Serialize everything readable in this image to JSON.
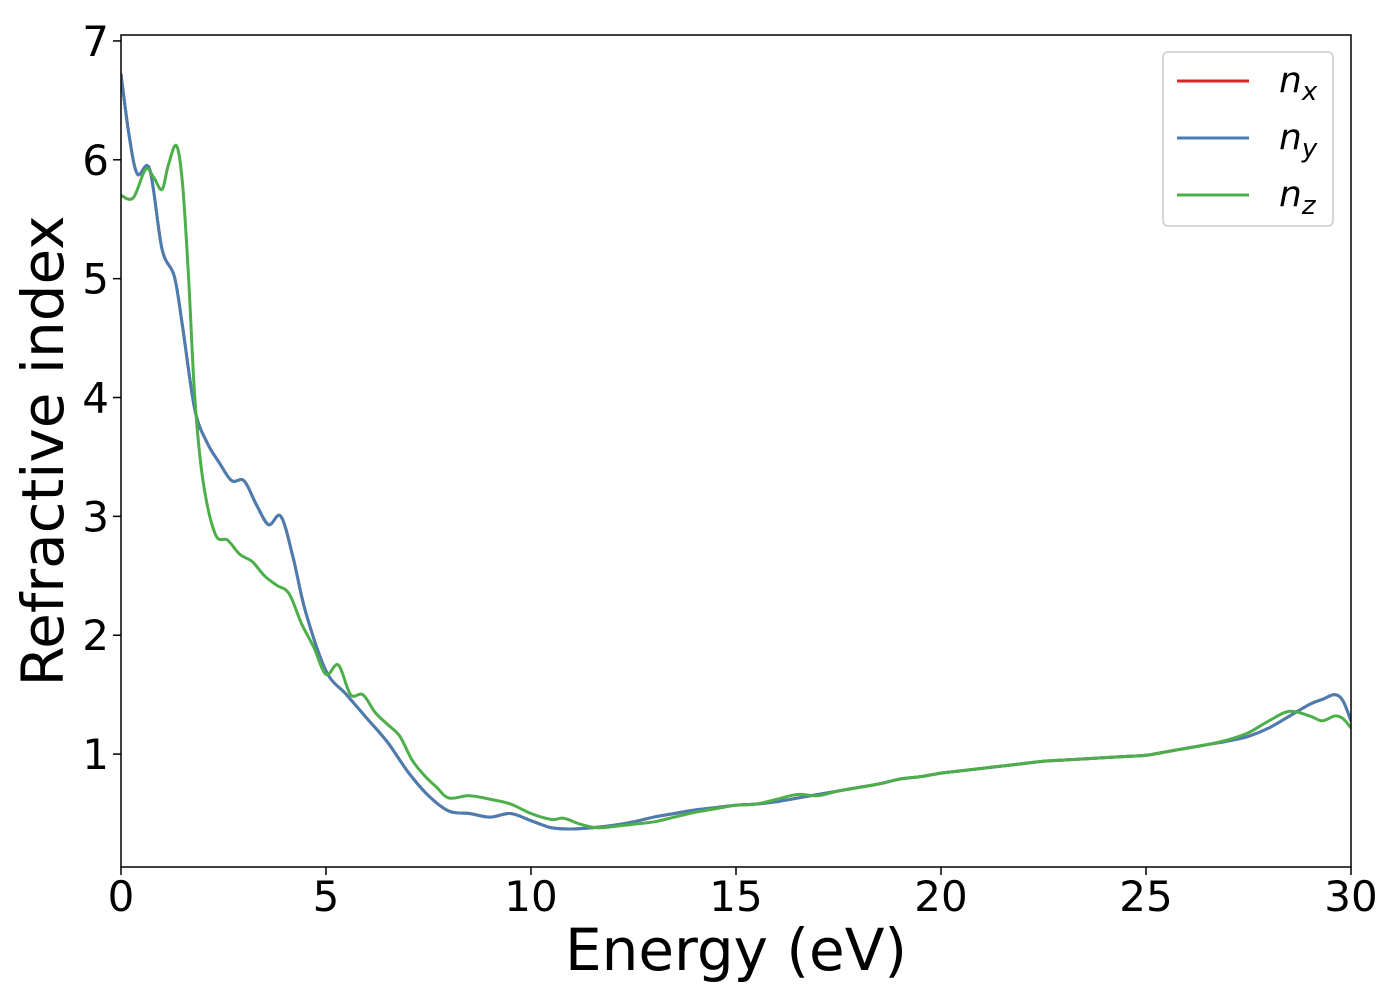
{
  "chart_data": {
    "type": "line",
    "xlabel": "Energy (eV)",
    "ylabel": "Refractive index",
    "xlim": [
      0,
      30
    ],
    "ylim": [
      0.05,
      7.05
    ],
    "xticks": [
      0,
      5,
      10,
      15,
      20,
      25,
      30
    ],
    "yticks": [
      1,
      2,
      3,
      4,
      5,
      6,
      7
    ],
    "grid": false,
    "legend_position": "top-right",
    "series": [
      {
        "name": "n",
        "subscript": "x",
        "color": "#d62728",
        "x": [
          0,
          0.2,
          0.4,
          0.7,
          1.0,
          1.3,
          1.5,
          1.8,
          2.1,
          2.4,
          2.7,
          3.0,
          3.3,
          3.6,
          3.9,
          4.2,
          4.5,
          5.0,
          5.5,
          6.0,
          6.5,
          7.0,
          7.5,
          8.0,
          8.5,
          9.0,
          9.5,
          10.0,
          10.5,
          11.0,
          11.5,
          12.0,
          12.5,
          13.0,
          13.5,
          14.0,
          14.5,
          15.0,
          15.5,
          16.0,
          16.5,
          17.0,
          17.5,
          18.0,
          18.5,
          19.0,
          19.5,
          20.0,
          20.5,
          21.0,
          21.5,
          22.0,
          22.5,
          23.0,
          23.5,
          24.0,
          24.5,
          25.0,
          25.5,
          26.0,
          26.5,
          27.0,
          27.5,
          28.0,
          28.5,
          29.0,
          29.3,
          29.6,
          29.8,
          30.0
        ],
        "y": [
          6.72,
          6.2,
          5.88,
          5.92,
          5.25,
          5.02,
          4.6,
          3.9,
          3.62,
          3.45,
          3.3,
          3.3,
          3.1,
          2.93,
          3.0,
          2.65,
          2.2,
          1.7,
          1.5,
          1.3,
          1.1,
          0.85,
          0.65,
          0.52,
          0.5,
          0.47,
          0.5,
          0.44,
          0.38,
          0.37,
          0.38,
          0.4,
          0.43,
          0.47,
          0.5,
          0.53,
          0.55,
          0.57,
          0.58,
          0.6,
          0.63,
          0.66,
          0.69,
          0.72,
          0.75,
          0.79,
          0.81,
          0.84,
          0.86,
          0.88,
          0.9,
          0.92,
          0.94,
          0.95,
          0.96,
          0.97,
          0.98,
          0.99,
          1.02,
          1.05,
          1.08,
          1.11,
          1.15,
          1.22,
          1.32,
          1.42,
          1.46,
          1.5,
          1.45,
          1.28
        ]
      },
      {
        "name": "n",
        "subscript": "y",
        "color": "#4a7eb0",
        "x": [
          0,
          0.2,
          0.4,
          0.7,
          1.0,
          1.3,
          1.5,
          1.8,
          2.1,
          2.4,
          2.7,
          3.0,
          3.3,
          3.6,
          3.9,
          4.2,
          4.5,
          5.0,
          5.5,
          6.0,
          6.5,
          7.0,
          7.5,
          8.0,
          8.5,
          9.0,
          9.5,
          10.0,
          10.5,
          11.0,
          11.5,
          12.0,
          12.5,
          13.0,
          13.5,
          14.0,
          14.5,
          15.0,
          15.5,
          16.0,
          16.5,
          17.0,
          17.5,
          18.0,
          18.5,
          19.0,
          19.5,
          20.0,
          20.5,
          21.0,
          21.5,
          22.0,
          22.5,
          23.0,
          23.5,
          24.0,
          24.5,
          25.0,
          25.5,
          26.0,
          26.5,
          27.0,
          27.5,
          28.0,
          28.5,
          29.0,
          29.3,
          29.6,
          29.8,
          30.0
        ],
        "y": [
          6.72,
          6.2,
          5.88,
          5.92,
          5.25,
          5.02,
          4.6,
          3.9,
          3.62,
          3.45,
          3.3,
          3.3,
          3.1,
          2.93,
          3.0,
          2.65,
          2.2,
          1.7,
          1.5,
          1.3,
          1.1,
          0.85,
          0.65,
          0.52,
          0.5,
          0.47,
          0.5,
          0.44,
          0.38,
          0.37,
          0.38,
          0.4,
          0.43,
          0.47,
          0.5,
          0.53,
          0.55,
          0.57,
          0.58,
          0.6,
          0.63,
          0.66,
          0.69,
          0.72,
          0.75,
          0.79,
          0.81,
          0.84,
          0.86,
          0.88,
          0.9,
          0.92,
          0.94,
          0.95,
          0.96,
          0.97,
          0.98,
          0.99,
          1.02,
          1.05,
          1.08,
          1.11,
          1.15,
          1.22,
          1.32,
          1.42,
          1.46,
          1.5,
          1.45,
          1.28
        ]
      },
      {
        "name": "n",
        "subscript": "z",
        "color": "#4daf4a",
        "x": [
          0,
          0.3,
          0.6,
          0.8,
          1.0,
          1.15,
          1.35,
          1.5,
          1.65,
          1.8,
          2.0,
          2.3,
          2.6,
          2.9,
          3.2,
          3.5,
          3.8,
          4.1,
          4.4,
          4.7,
          5.0,
          5.3,
          5.6,
          5.9,
          6.2,
          6.5,
          6.8,
          7.1,
          7.4,
          7.7,
          8.0,
          8.5,
          9.0,
          9.5,
          10.0,
          10.5,
          10.8,
          11.2,
          11.6,
          12.0,
          12.5,
          13.0,
          13.5,
          14.0,
          14.5,
          15.0,
          15.5,
          16.0,
          16.5,
          17.0,
          17.5,
          18.0,
          18.5,
          19.0,
          19.5,
          20.0,
          20.5,
          21.0,
          21.5,
          22.0,
          22.5,
          23.0,
          23.5,
          24.0,
          24.5,
          25.0,
          25.5,
          26.0,
          26.5,
          27.0,
          27.5,
          28.0,
          28.5,
          29.0,
          29.3,
          29.6,
          29.8,
          30.0
        ],
        "y": [
          5.7,
          5.68,
          5.92,
          5.85,
          5.75,
          5.95,
          6.12,
          5.8,
          5.0,
          4.0,
          3.3,
          2.85,
          2.8,
          2.68,
          2.62,
          2.5,
          2.42,
          2.35,
          2.1,
          1.9,
          1.67,
          1.75,
          1.5,
          1.5,
          1.35,
          1.25,
          1.15,
          0.95,
          0.82,
          0.72,
          0.63,
          0.65,
          0.62,
          0.58,
          0.5,
          0.45,
          0.46,
          0.41,
          0.38,
          0.39,
          0.41,
          0.43,
          0.47,
          0.51,
          0.54,
          0.57,
          0.58,
          0.62,
          0.66,
          0.65,
          0.69,
          0.72,
          0.75,
          0.79,
          0.81,
          0.84,
          0.86,
          0.88,
          0.9,
          0.92,
          0.94,
          0.95,
          0.96,
          0.97,
          0.98,
          0.99,
          1.02,
          1.05,
          1.08,
          1.12,
          1.18,
          1.28,
          1.36,
          1.32,
          1.28,
          1.32,
          1.3,
          1.22
        ]
      }
    ]
  }
}
